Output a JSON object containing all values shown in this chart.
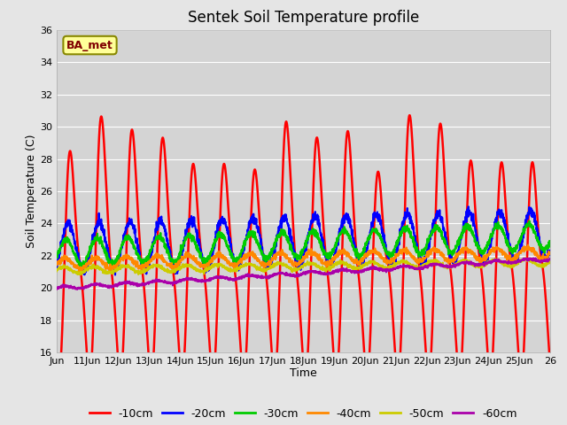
{
  "title": "Sentek Soil Temperature profile",
  "xlabel": "Time",
  "ylabel": "Soil Temperature (C)",
  "ylim": [
    16,
    36
  ],
  "yticks": [
    16,
    18,
    20,
    22,
    24,
    26,
    28,
    30,
    32,
    34,
    36
  ],
  "x_tick_labels": [
    "Jun",
    "11Jun",
    "12Jun",
    "13Jun",
    "14Jun",
    "15Jun",
    "16Jun",
    "17Jun",
    "18Jun",
    "19Jun",
    "20Jun",
    "21Jun",
    "22Jun",
    "23Jun",
    "24Jun",
    "25Jun",
    "26"
  ],
  "bg_color": "#e5e5e5",
  "plot_bg_color": "#d4d4d4",
  "grid_color": "#ffffff",
  "legend_label": "BA_met",
  "legend_box_color": "#ffff99",
  "legend_text_color": "#800000",
  "series_colors": [
    "#ff0000",
    "#0000ff",
    "#00cc00",
    "#ff8800",
    "#cccc00",
    "#aa00aa"
  ],
  "series_labels": [
    "-10cm",
    "-20cm",
    "-30cm",
    "-40cm",
    "-50cm",
    "-60cm"
  ],
  "series_linewidths": [
    1.8,
    1.5,
    1.5,
    1.5,
    1.5,
    1.5
  ],
  "n_days": 16,
  "pts_per_day": 144
}
